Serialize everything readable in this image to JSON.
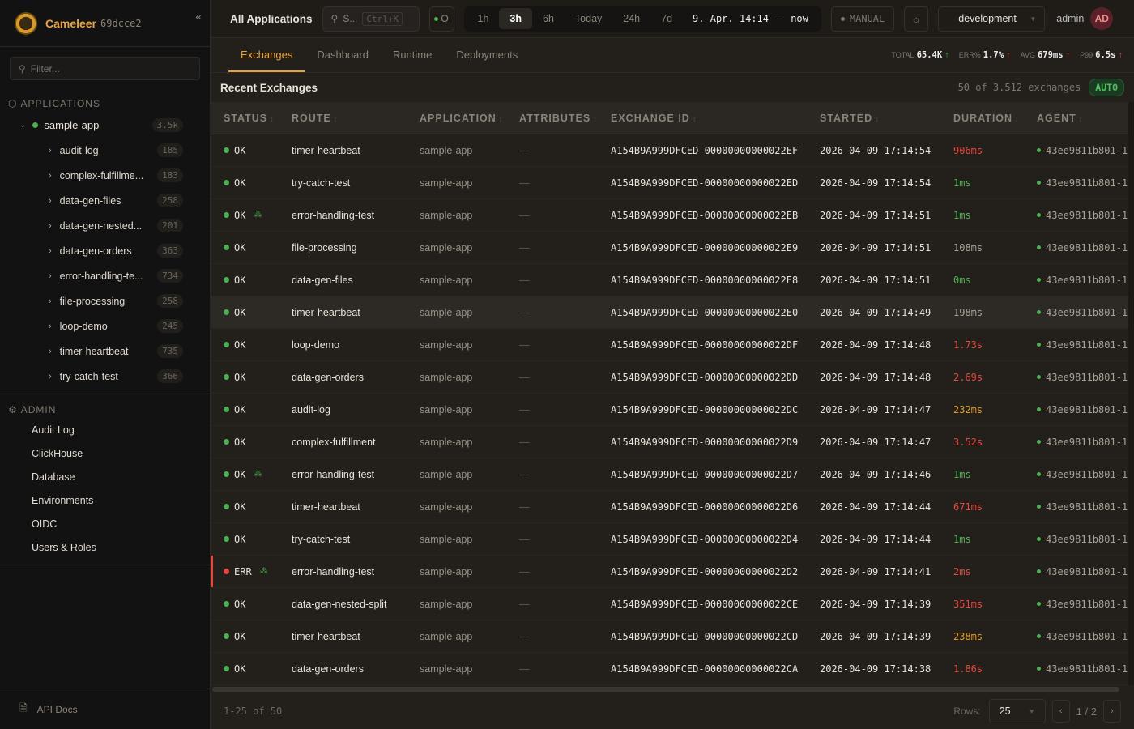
{
  "brand": {
    "name": "Cameleer",
    "version": "69dcce2"
  },
  "sidebar": {
    "filter_placeholder": "Filter...",
    "applications_label": "APPLICATIONS",
    "app": {
      "name": "sample-app",
      "count": "3.5k",
      "status_color": "#4caf50"
    },
    "routes": [
      {
        "name": "audit-log",
        "count": "185"
      },
      {
        "name": "complex-fulfillme...",
        "count": "183"
      },
      {
        "name": "data-gen-files",
        "count": "258"
      },
      {
        "name": "data-gen-nested...",
        "count": "201"
      },
      {
        "name": "data-gen-orders",
        "count": "363"
      },
      {
        "name": "error-handling-te...",
        "count": "734"
      },
      {
        "name": "file-processing",
        "count": "258"
      },
      {
        "name": "loop-demo",
        "count": "245"
      },
      {
        "name": "timer-heartbeat",
        "count": "735"
      },
      {
        "name": "try-catch-test",
        "count": "366"
      }
    ],
    "admin_label": "ADMIN",
    "admin_items": [
      "Audit Log",
      "ClickHouse",
      "Database",
      "Environments",
      "OIDC",
      "Users & Roles"
    ],
    "api_docs": "API Docs"
  },
  "topbar": {
    "title": "All Applications",
    "search_placeholder": "S...",
    "search_shortcut": "Ctrl+K",
    "status_label": "O",
    "ranges": [
      "1h",
      "3h",
      "6h",
      "Today",
      "24h",
      "7d"
    ],
    "active_range": "3h",
    "date_from": "9. Apr. 14:14",
    "date_sep": "–",
    "date_to": "now",
    "manual_label": "MANUAL",
    "environment": "development",
    "user": "admin",
    "avatar_initials": "AD"
  },
  "tabs": [
    {
      "label": "Exchanges",
      "active": true
    },
    {
      "label": "Dashboard"
    },
    {
      "label": "Runtime"
    },
    {
      "label": "Deployments"
    }
  ],
  "kpis": [
    {
      "label": "TOTAL",
      "value": "65.4K",
      "trend": "up",
      "trend_color": "green"
    },
    {
      "label": "ERR%",
      "value": "1.7%",
      "trend": "up",
      "trend_color": "red"
    },
    {
      "label": "AVG",
      "value": "679ms",
      "trend": "up",
      "trend_color": "red"
    },
    {
      "label": "P99",
      "value": "6.5s",
      "trend": "up",
      "trend_color": "red"
    }
  ],
  "list": {
    "title": "Recent Exchanges",
    "count_text": "50 of 3.512 exchanges",
    "auto_label": "AUTO"
  },
  "table": {
    "columns": [
      "STATUS",
      "ROUTE",
      "APPLICATION",
      "ATTRIBUTES",
      "EXCHANGE ID",
      "STARTED",
      "DURATION",
      "AGENT"
    ],
    "rows": [
      {
        "status": "OK",
        "route": "timer-heartbeat",
        "app": "sample-app",
        "attr": "—",
        "id": "A154B9A999DFCED-00000000000022EF",
        "started": "2026-04-09 17:14:54",
        "duration": "906ms",
        "dur_color": "red",
        "agent": "43ee9811b801-1"
      },
      {
        "status": "OK",
        "route": "try-catch-test",
        "app": "sample-app",
        "attr": "—",
        "id": "A154B9A999DFCED-00000000000022ED",
        "started": "2026-04-09 17:14:54",
        "duration": "1ms",
        "dur_color": "green",
        "agent": "43ee9811b801-1"
      },
      {
        "status": "OK",
        "trace": true,
        "route": "error-handling-test",
        "app": "sample-app",
        "attr": "—",
        "id": "A154B9A999DFCED-00000000000022EB",
        "started": "2026-04-09 17:14:51",
        "duration": "1ms",
        "dur_color": "green",
        "agent": "43ee9811b801-1"
      },
      {
        "status": "OK",
        "route": "file-processing",
        "app": "sample-app",
        "attr": "—",
        "id": "A154B9A999DFCED-00000000000022E9",
        "started": "2026-04-09 17:14:51",
        "duration": "108ms",
        "dur_color": "gray",
        "agent": "43ee9811b801-1"
      },
      {
        "status": "OK",
        "route": "data-gen-files",
        "app": "sample-app",
        "attr": "—",
        "id": "A154B9A999DFCED-00000000000022E8",
        "started": "2026-04-09 17:14:51",
        "duration": "0ms",
        "dur_color": "green",
        "agent": "43ee9811b801-1"
      },
      {
        "status": "OK",
        "route": "timer-heartbeat",
        "app": "sample-app",
        "attr": "—",
        "id": "A154B9A999DFCED-00000000000022E0",
        "started": "2026-04-09 17:14:49",
        "duration": "198ms",
        "dur_color": "gray",
        "agent": "43ee9811b801-1",
        "hovered": true
      },
      {
        "status": "OK",
        "route": "loop-demo",
        "app": "sample-app",
        "attr": "—",
        "id": "A154B9A999DFCED-00000000000022DF",
        "started": "2026-04-09 17:14:48",
        "duration": "1.73s",
        "dur_color": "red",
        "agent": "43ee9811b801-1"
      },
      {
        "status": "OK",
        "route": "data-gen-orders",
        "app": "sample-app",
        "attr": "—",
        "id": "A154B9A999DFCED-00000000000022DD",
        "started": "2026-04-09 17:14:48",
        "duration": "2.69s",
        "dur_color": "red",
        "agent": "43ee9811b801-1"
      },
      {
        "status": "OK",
        "route": "audit-log",
        "app": "sample-app",
        "attr": "—",
        "id": "A154B9A999DFCED-00000000000022DC",
        "started": "2026-04-09 17:14:47",
        "duration": "232ms",
        "dur_color": "orange",
        "agent": "43ee9811b801-1"
      },
      {
        "status": "OK",
        "route": "complex-fulfillment",
        "app": "sample-app",
        "attr": "—",
        "id": "A154B9A999DFCED-00000000000022D9",
        "started": "2026-04-09 17:14:47",
        "duration": "3.52s",
        "dur_color": "red",
        "agent": "43ee9811b801-1"
      },
      {
        "status": "OK",
        "trace": true,
        "route": "error-handling-test",
        "app": "sample-app",
        "attr": "—",
        "id": "A154B9A999DFCED-00000000000022D7",
        "started": "2026-04-09 17:14:46",
        "duration": "1ms",
        "dur_color": "green",
        "agent": "43ee9811b801-1"
      },
      {
        "status": "OK",
        "route": "timer-heartbeat",
        "app": "sample-app",
        "attr": "—",
        "id": "A154B9A999DFCED-00000000000022D6",
        "started": "2026-04-09 17:14:44",
        "duration": "671ms",
        "dur_color": "red",
        "agent": "43ee9811b801-1"
      },
      {
        "status": "OK",
        "route": "try-catch-test",
        "app": "sample-app",
        "attr": "—",
        "id": "A154B9A999DFCED-00000000000022D4",
        "started": "2026-04-09 17:14:44",
        "duration": "1ms",
        "dur_color": "green",
        "agent": "43ee9811b801-1"
      },
      {
        "status": "ERR",
        "trace": true,
        "route": "error-handling-test",
        "app": "sample-app",
        "attr": "—",
        "id": "A154B9A999DFCED-00000000000022D2",
        "started": "2026-04-09 17:14:41",
        "duration": "2ms",
        "dur_color": "red",
        "agent": "43ee9811b801-1"
      },
      {
        "status": "OK",
        "route": "data-gen-nested-split",
        "app": "sample-app",
        "attr": "—",
        "id": "A154B9A999DFCED-00000000000022CE",
        "started": "2026-04-09 17:14:39",
        "duration": "351ms",
        "dur_color": "red",
        "agent": "43ee9811b801-1"
      },
      {
        "status": "OK",
        "route": "timer-heartbeat",
        "app": "sample-app",
        "attr": "—",
        "id": "A154B9A999DFCED-00000000000022CD",
        "started": "2026-04-09 17:14:39",
        "duration": "238ms",
        "dur_color": "orange",
        "agent": "43ee9811b801-1"
      },
      {
        "status": "OK",
        "route": "data-gen-orders",
        "app": "sample-app",
        "attr": "—",
        "id": "A154B9A999DFCED-00000000000022CA",
        "started": "2026-04-09 17:14:38",
        "duration": "1.86s",
        "dur_color": "red",
        "agent": "43ee9811b801-1"
      }
    ]
  },
  "footer": {
    "range": "1-25 of 50",
    "rows_label": "Rows:",
    "rows_value": "25",
    "page": "1",
    "page_sep": "/",
    "pages": "2"
  },
  "colors": {
    "accent": "#e9a23b",
    "ok": "#4caf50",
    "err": "#e5483e"
  }
}
